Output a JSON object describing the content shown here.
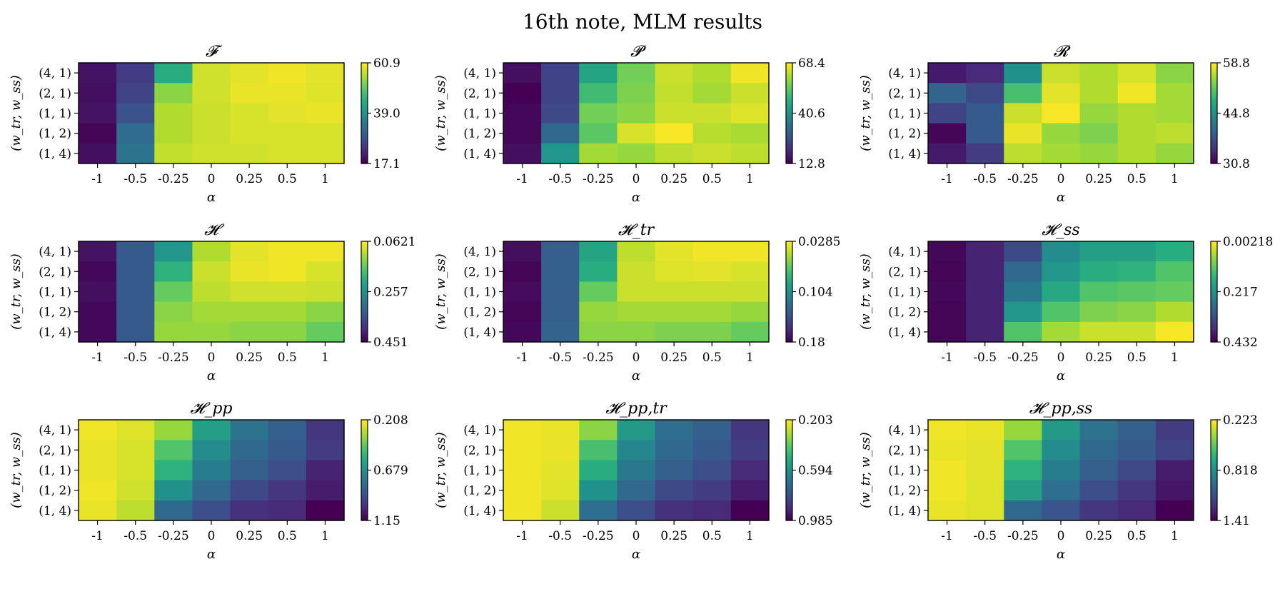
{
  "figure_title": "16th note, MLM results",
  "colormap": [
    "#440154",
    "#472d7b",
    "#3b528b",
    "#2c728e",
    "#21918c",
    "#28ae80",
    "#5ec962",
    "#addc30",
    "#fde725"
  ],
  "chart_data": [
    {
      "type": "heatmap",
      "title": "𝓕",
      "xlabel": "α",
      "ylabel": "(w_tr, w_ss)",
      "x": [
        "-1",
        "-0.5",
        "-0.25",
        "0",
        "0.25",
        "0.5",
        "1"
      ],
      "y": [
        "(4, 1)",
        "(2, 1)",
        "(1, 1)",
        "(1, 2)",
        "(1, 4)"
      ],
      "colorbar_ticks": [
        "60.9",
        "39.0",
        "17.1"
      ],
      "colorbar_range": [
        17.1,
        60.9
      ],
      "z": [
        [
          0.05,
          0.18,
          0.62,
          0.93,
          0.96,
          0.98,
          0.96
        ],
        [
          0.04,
          0.2,
          0.82,
          0.93,
          0.97,
          0.97,
          0.95
        ],
        [
          0.05,
          0.25,
          0.88,
          0.92,
          0.94,
          0.96,
          0.97
        ],
        [
          0.01,
          0.35,
          0.88,
          0.92,
          0.94,
          0.94,
          0.94
        ],
        [
          0.04,
          0.38,
          0.91,
          0.93,
          0.93,
          0.94,
          0.94
        ]
      ]
    },
    {
      "type": "heatmap",
      "title": "𝓟",
      "xlabel": "α",
      "ylabel": "(w_tr, w_ss)",
      "x": [
        "-1",
        "-0.5",
        "-0.25",
        "0",
        "0.25",
        "0.5",
        "1"
      ],
      "y": [
        "(4, 1)",
        "(2, 1)",
        "(1, 1)",
        "(1, 2)",
        "(1, 4)"
      ],
      "colorbar_ticks": [
        "68.4",
        "40.6",
        "12.8"
      ],
      "colorbar_range": [
        12.8,
        68.4
      ],
      "z": [
        [
          0.04,
          0.2,
          0.58,
          0.78,
          0.92,
          0.88,
          0.98
        ],
        [
          0.0,
          0.2,
          0.68,
          0.8,
          0.91,
          0.86,
          0.92
        ],
        [
          0.02,
          0.22,
          0.78,
          0.82,
          0.92,
          0.92,
          0.95
        ],
        [
          0.02,
          0.34,
          0.74,
          0.94,
          0.99,
          0.89,
          0.87
        ],
        [
          0.04,
          0.52,
          0.86,
          0.84,
          0.9,
          0.92,
          0.9
        ]
      ]
    },
    {
      "type": "heatmap",
      "title": "𝓡",
      "xlabel": "α",
      "ylabel": "(w_tr, w_ss)",
      "x": [
        "-1",
        "-0.5",
        "-0.25",
        "0",
        "0.25",
        "0.5",
        "1"
      ],
      "y": [
        "(4, 1)",
        "(2, 1)",
        "(1, 1)",
        "(1, 2)",
        "(1, 4)"
      ],
      "colorbar_ticks": [
        "58.8",
        "44.8",
        "30.8"
      ],
      "colorbar_range": [
        30.8,
        58.8
      ],
      "z": [
        [
          0.07,
          0.12,
          0.5,
          0.92,
          0.88,
          0.94,
          0.82
        ],
        [
          0.32,
          0.22,
          0.7,
          0.96,
          0.88,
          0.98,
          0.86
        ],
        [
          0.2,
          0.28,
          0.92,
          0.99,
          0.84,
          0.88,
          0.86
        ],
        [
          0.01,
          0.28,
          0.97,
          0.84,
          0.8,
          0.88,
          0.9
        ],
        [
          0.07,
          0.18,
          0.9,
          0.86,
          0.84,
          0.88,
          0.84
        ]
      ]
    },
    {
      "type": "heatmap",
      "title": "𝓗",
      "xlabel": "α",
      "ylabel": "(w_tr, w_ss)",
      "x": [
        "-1",
        "-0.5",
        "-0.25",
        "0",
        "0.25",
        "0.5",
        "1"
      ],
      "y": [
        "(4, 1)",
        "(2, 1)",
        "(1, 1)",
        "(1, 2)",
        "(1, 4)"
      ],
      "colorbar_ticks": [
        "0.0621",
        "0.257",
        "0.451"
      ],
      "colorbar_range": [
        0.451,
        0.0621
      ],
      "z": [
        [
          0.05,
          0.28,
          0.52,
          0.88,
          0.96,
          0.98,
          0.98
        ],
        [
          0.02,
          0.28,
          0.64,
          0.92,
          0.97,
          0.98,
          0.94
        ],
        [
          0.04,
          0.28,
          0.76,
          0.9,
          0.93,
          0.93,
          0.92
        ],
        [
          0.02,
          0.28,
          0.82,
          0.86,
          0.86,
          0.86,
          0.82
        ],
        [
          0.02,
          0.28,
          0.84,
          0.84,
          0.82,
          0.82,
          0.76
        ]
      ]
    },
    {
      "type": "heatmap",
      "title": "𝓗_tr",
      "xlabel": "α",
      "ylabel": "(w_tr, w_ss)",
      "x": [
        "-1",
        "-0.5",
        "-0.25",
        "0",
        "0.25",
        "0.5",
        "1"
      ],
      "y": [
        "(4, 1)",
        "(2, 1)",
        "(1, 1)",
        "(1, 2)",
        "(1, 4)"
      ],
      "colorbar_ticks": [
        "0.0285",
        "0.104",
        "0.18"
      ],
      "colorbar_range": [
        0.18,
        0.0285
      ],
      "z": [
        [
          0.04,
          0.3,
          0.58,
          0.9,
          0.96,
          0.98,
          0.98
        ],
        [
          0.01,
          0.3,
          0.62,
          0.92,
          0.95,
          0.96,
          0.94
        ],
        [
          0.03,
          0.3,
          0.76,
          0.92,
          0.92,
          0.92,
          0.92
        ],
        [
          0.01,
          0.3,
          0.84,
          0.86,
          0.86,
          0.86,
          0.84
        ],
        [
          0.02,
          0.32,
          0.82,
          0.82,
          0.8,
          0.8,
          0.76
        ]
      ]
    },
    {
      "type": "heatmap",
      "title": "𝓗_ss",
      "xlabel": "α",
      "ylabel": "(w_tr, w_ss)",
      "x": [
        "-1",
        "-0.5",
        "-0.25",
        "0",
        "0.25",
        "0.5",
        "1"
      ],
      "y": [
        "(4, 1)",
        "(2, 1)",
        "(1, 1)",
        "(1, 2)",
        "(1, 4)"
      ],
      "colorbar_ticks": [
        "0.00218",
        "0.217",
        "0.432"
      ],
      "colorbar_range": [
        0.432,
        0.00218
      ],
      "z": [
        [
          0.02,
          0.1,
          0.22,
          0.48,
          0.56,
          0.56,
          0.62
        ],
        [
          0.01,
          0.1,
          0.34,
          0.52,
          0.62,
          0.64,
          0.72
        ],
        [
          0.02,
          0.1,
          0.4,
          0.6,
          0.72,
          0.74,
          0.76
        ],
        [
          0.01,
          0.1,
          0.52,
          0.72,
          0.8,
          0.82,
          0.88
        ],
        [
          0.01,
          0.1,
          0.72,
          0.86,
          0.92,
          0.92,
          0.99
        ]
      ]
    },
    {
      "type": "heatmap",
      "title": "𝓗_pp",
      "xlabel": "α",
      "ylabel": "(w_tr, w_ss)",
      "x": [
        "-1",
        "-0.5",
        "-0.25",
        "0",
        "0.25",
        "0.5",
        "1"
      ],
      "y": [
        "(4, 1)",
        "(2, 1)",
        "(1, 1)",
        "(1, 2)",
        "(1, 4)"
      ],
      "colorbar_ticks": [
        "0.208",
        "0.679",
        "1.15"
      ],
      "colorbar_range": [
        1.15,
        0.208
      ],
      "z": [
        [
          0.98,
          0.95,
          0.84,
          0.56,
          0.38,
          0.3,
          0.16
        ],
        [
          0.97,
          0.94,
          0.72,
          0.48,
          0.34,
          0.28,
          0.18
        ],
        [
          0.97,
          0.94,
          0.64,
          0.42,
          0.3,
          0.24,
          0.1
        ],
        [
          0.98,
          0.93,
          0.5,
          0.34,
          0.22,
          0.16,
          0.08
        ],
        [
          0.97,
          0.9,
          0.34,
          0.24,
          0.14,
          0.12,
          0.0
        ]
      ]
    },
    {
      "type": "heatmap",
      "title": "𝓗_pp,tr",
      "xlabel": "α",
      "ylabel": "(w_tr, w_ss)",
      "x": [
        "-1",
        "-0.5",
        "-0.25",
        "0",
        "0.25",
        "0.5",
        "1"
      ],
      "y": [
        "(4, 1)",
        "(2, 1)",
        "(1, 1)",
        "(1, 2)",
        "(1, 4)"
      ],
      "colorbar_ticks": [
        "0.203",
        "0.594",
        "0.985"
      ],
      "colorbar_range": [
        0.985,
        0.203
      ],
      "z": [
        [
          0.98,
          0.97,
          0.82,
          0.54,
          0.36,
          0.3,
          0.16
        ],
        [
          0.98,
          0.97,
          0.7,
          0.46,
          0.34,
          0.28,
          0.18
        ],
        [
          0.98,
          0.96,
          0.62,
          0.4,
          0.3,
          0.24,
          0.12
        ],
        [
          0.98,
          0.95,
          0.5,
          0.34,
          0.22,
          0.18,
          0.08
        ],
        [
          0.98,
          0.92,
          0.36,
          0.24,
          0.14,
          0.12,
          0.0
        ]
      ]
    },
    {
      "type": "heatmap",
      "title": "𝓗_pp,ss",
      "xlabel": "α",
      "ylabel": "(w_tr, w_ss)",
      "x": [
        "-1",
        "-0.5",
        "-0.25",
        "0",
        "0.25",
        "0.5",
        "1"
      ],
      "y": [
        "(4, 1)",
        "(2, 1)",
        "(1, 1)",
        "(1, 2)",
        "(1, 4)"
      ],
      "colorbar_ticks": [
        "0.223",
        "0.818",
        "1.41"
      ],
      "colorbar_range": [
        1.41,
        0.223
      ],
      "z": [
        [
          0.98,
          0.97,
          0.84,
          0.54,
          0.38,
          0.3,
          0.18
        ],
        [
          0.97,
          0.96,
          0.72,
          0.48,
          0.34,
          0.28,
          0.2
        ],
        [
          0.98,
          0.96,
          0.64,
          0.42,
          0.3,
          0.22,
          0.08
        ],
        [
          0.98,
          0.95,
          0.56,
          0.36,
          0.24,
          0.16,
          0.06
        ],
        [
          0.97,
          0.95,
          0.34,
          0.26,
          0.16,
          0.12,
          0.0
        ]
      ]
    }
  ]
}
